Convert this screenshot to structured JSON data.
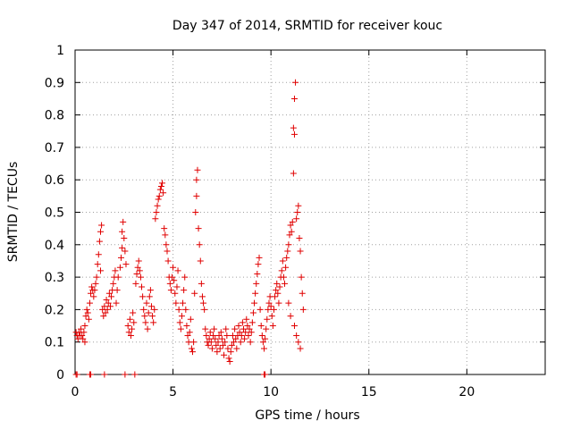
{
  "chart_data": {
    "type": "scatter",
    "title": "Day 347 of 2014, SRMTID for receiver kouc",
    "xlabel": "GPS time / hours",
    "ylabel": "SRMTID / TECUs",
    "xlim": [
      0,
      24
    ],
    "ylim": [
      0,
      1
    ],
    "xticks": [
      "0",
      "5",
      "10",
      "15",
      "20"
    ],
    "xtick_values": [
      0,
      5,
      10,
      15,
      20
    ],
    "yticks": [
      "0",
      "0.1",
      "0.2",
      "0.3",
      "0.4",
      "0.5",
      "0.6",
      "0.7",
      "0.8",
      "0.9",
      "1"
    ],
    "ytick_values": [
      0,
      0.1,
      0.2,
      0.3,
      0.4,
      0.5,
      0.6,
      0.7,
      0.8,
      0.9,
      1
    ],
    "grid": true,
    "marker": "+",
    "color": "#e00000",
    "series": [
      {
        "name": "SRMTID",
        "points": [
          [
            0.05,
            0.13
          ],
          [
            0.1,
            0.12
          ],
          [
            0.15,
            0.11
          ],
          [
            0.2,
            0.13
          ],
          [
            0.25,
            0.12
          ],
          [
            0.3,
            0.14
          ],
          [
            0.35,
            0.12
          ],
          [
            0.4,
            0.11
          ],
          [
            0.45,
            0.13
          ],
          [
            0.5,
            0.1
          ],
          [
            0.5,
            0.15
          ],
          [
            0.55,
            0.18
          ],
          [
            0.6,
            0.2
          ],
          [
            0.65,
            0.19
          ],
          [
            0.7,
            0.17
          ],
          [
            0.75,
            0.22
          ],
          [
            0.8,
            0.25
          ],
          [
            0.85,
            0.27
          ],
          [
            0.9,
            0.26
          ],
          [
            0.95,
            0.24
          ],
          [
            1.0,
            0.26
          ],
          [
            1.05,
            0.28
          ],
          [
            1.1,
            0.3
          ],
          [
            1.15,
            0.34
          ],
          [
            1.2,
            0.37
          ],
          [
            1.25,
            0.41
          ],
          [
            1.3,
            0.44
          ],
          [
            1.35,
            0.46
          ],
          [
            1.3,
            0.32
          ],
          [
            1.4,
            0.2
          ],
          [
            1.45,
            0.18
          ],
          [
            1.5,
            0.21
          ],
          [
            1.55,
            0.19
          ],
          [
            1.6,
            0.23
          ],
          [
            1.65,
            0.2
          ],
          [
            1.7,
            0.22
          ],
          [
            1.75,
            0.25
          ],
          [
            1.8,
            0.21
          ],
          [
            1.85,
            0.24
          ],
          [
            1.9,
            0.26
          ],
          [
            1.95,
            0.28
          ],
          [
            2.0,
            0.3
          ],
          [
            2.05,
            0.32
          ],
          [
            2.1,
            0.22
          ],
          [
            2.15,
            0.26
          ],
          [
            2.2,
            0.3
          ],
          [
            2.3,
            0.33
          ],
          [
            2.35,
            0.36
          ],
          [
            2.4,
            0.39
          ],
          [
            2.4,
            0.44
          ],
          [
            2.45,
            0.47
          ],
          [
            2.5,
            0.42
          ],
          [
            2.55,
            0.38
          ],
          [
            2.6,
            0.34
          ],
          [
            2.7,
            0.15
          ],
          [
            2.75,
            0.13
          ],
          [
            2.8,
            0.17
          ],
          [
            2.85,
            0.12
          ],
          [
            2.9,
            0.14
          ],
          [
            2.95,
            0.19
          ],
          [
            3.0,
            0.16
          ],
          [
            3.1,
            0.28
          ],
          [
            3.15,
            0.31
          ],
          [
            3.2,
            0.33
          ],
          [
            3.25,
            0.35
          ],
          [
            3.3,
            0.32
          ],
          [
            3.35,
            0.3
          ],
          [
            3.4,
            0.27
          ],
          [
            3.45,
            0.24
          ],
          [
            3.5,
            0.2
          ],
          [
            3.55,
            0.18
          ],
          [
            3.6,
            0.16
          ],
          [
            3.65,
            0.22
          ],
          [
            3.7,
            0.14
          ],
          [
            3.75,
            0.19
          ],
          [
            3.8,
            0.24
          ],
          [
            3.85,
            0.26
          ],
          [
            3.9,
            0.21
          ],
          [
            3.95,
            0.18
          ],
          [
            4.0,
            0.16
          ],
          [
            4.05,
            0.2
          ],
          [
            4.1,
            0.48
          ],
          [
            4.15,
            0.5
          ],
          [
            4.2,
            0.52
          ],
          [
            4.25,
            0.54
          ],
          [
            4.3,
            0.55
          ],
          [
            4.35,
            0.57
          ],
          [
            4.4,
            0.58
          ],
          [
            4.45,
            0.59
          ],
          [
            4.5,
            0.56
          ],
          [
            4.55,
            0.45
          ],
          [
            4.6,
            0.43
          ],
          [
            4.65,
            0.4
          ],
          [
            4.7,
            0.38
          ],
          [
            4.75,
            0.35
          ],
          [
            4.8,
            0.3
          ],
          [
            4.85,
            0.28
          ],
          [
            4.9,
            0.26
          ],
          [
            4.95,
            0.3
          ],
          [
            5.0,
            0.33
          ],
          [
            5.05,
            0.29
          ],
          [
            5.1,
            0.25
          ],
          [
            5.15,
            0.22
          ],
          [
            5.2,
            0.27
          ],
          [
            5.25,
            0.32
          ],
          [
            5.3,
            0.2
          ],
          [
            5.35,
            0.16
          ],
          [
            5.4,
            0.14
          ],
          [
            5.45,
            0.18
          ],
          [
            5.5,
            0.22
          ],
          [
            5.55,
            0.26
          ],
          [
            5.6,
            0.3
          ],
          [
            5.65,
            0.2
          ],
          [
            5.7,
            0.15
          ],
          [
            5.75,
            0.12
          ],
          [
            5.8,
            0.1
          ],
          [
            5.85,
            0.13
          ],
          [
            5.9,
            0.17
          ],
          [
            5.95,
            0.08
          ],
          [
            6.0,
            0.07
          ],
          [
            6.05,
            0.1
          ],
          [
            6.1,
            0.25
          ],
          [
            6.15,
            0.5
          ],
          [
            6.2,
            0.55
          ],
          [
            6.2,
            0.6
          ],
          [
            6.25,
            0.63
          ],
          [
            6.3,
            0.45
          ],
          [
            6.35,
            0.4
          ],
          [
            6.4,
            0.35
          ],
          [
            6.45,
            0.28
          ],
          [
            6.5,
            0.24
          ],
          [
            6.55,
            0.22
          ],
          [
            6.6,
            0.2
          ],
          [
            6.65,
            0.14
          ],
          [
            6.7,
            0.12
          ],
          [
            6.75,
            0.1
          ],
          [
            6.8,
            0.09
          ],
          [
            6.85,
            0.11
          ],
          [
            6.9,
            0.13
          ],
          [
            6.95,
            0.1
          ],
          [
            7.0,
            0.08
          ],
          [
            7.05,
            0.12
          ],
          [
            7.1,
            0.14
          ],
          [
            7.15,
            0.11
          ],
          [
            7.2,
            0.09
          ],
          [
            7.25,
            0.07
          ],
          [
            7.3,
            0.1
          ],
          [
            7.35,
            0.12
          ],
          [
            7.4,
            0.08
          ],
          [
            7.45,
            0.13
          ],
          [
            7.5,
            0.11
          ],
          [
            7.55,
            0.09
          ],
          [
            7.6,
            0.06
          ],
          [
            7.65,
            0.1
          ],
          [
            7.7,
            0.14
          ],
          [
            7.75,
            0.12
          ],
          [
            7.8,
            0.08
          ],
          [
            7.85,
            0.05
          ],
          [
            7.9,
            0.04
          ],
          [
            7.95,
            0.07
          ],
          [
            8.0,
            0.09
          ],
          [
            8.05,
            0.12
          ],
          [
            8.1,
            0.1
          ],
          [
            8.15,
            0.14
          ],
          [
            8.2,
            0.11
          ],
          [
            8.25,
            0.08
          ],
          [
            8.3,
            0.12
          ],
          [
            8.35,
            0.15
          ],
          [
            8.4,
            0.13
          ],
          [
            8.45,
            0.1
          ],
          [
            8.5,
            0.12
          ],
          [
            8.55,
            0.16
          ],
          [
            8.6,
            0.14
          ],
          [
            8.65,
            0.11
          ],
          [
            8.7,
            0.13
          ],
          [
            8.75,
            0.17
          ],
          [
            8.8,
            0.15
          ],
          [
            8.85,
            0.12
          ],
          [
            8.9,
            0.14
          ],
          [
            8.95,
            0.1
          ],
          [
            9.0,
            0.13
          ],
          [
            9.05,
            0.16
          ],
          [
            9.1,
            0.19
          ],
          [
            9.15,
            0.22
          ],
          [
            9.2,
            0.25
          ],
          [
            9.25,
            0.28
          ],
          [
            9.3,
            0.31
          ],
          [
            9.35,
            0.34
          ],
          [
            9.4,
            0.36
          ],
          [
            9.45,
            0.2
          ],
          [
            9.5,
            0.15
          ],
          [
            9.55,
            0.12
          ],
          [
            9.6,
            0.1
          ],
          [
            9.65,
            0.08
          ],
          [
            9.7,
            0.11
          ],
          [
            9.75,
            0.14
          ],
          [
            9.8,
            0.17
          ],
          [
            9.85,
            0.2
          ],
          [
            9.9,
            0.22
          ],
          [
            9.95,
            0.24
          ],
          [
            10.0,
            0.21
          ],
          [
            10.05,
            0.18
          ],
          [
            10.1,
            0.15
          ],
          [
            10.15,
            0.2
          ],
          [
            10.2,
            0.24
          ],
          [
            10.25,
            0.26
          ],
          [
            10.3,
            0.28
          ],
          [
            10.35,
            0.25
          ],
          [
            10.4,
            0.22
          ],
          [
            10.45,
            0.27
          ],
          [
            10.5,
            0.3
          ],
          [
            10.55,
            0.32
          ],
          [
            10.6,
            0.35
          ],
          [
            10.65,
            0.3
          ],
          [
            10.7,
            0.28
          ],
          [
            10.75,
            0.33
          ],
          [
            10.8,
            0.36
          ],
          [
            10.85,
            0.38
          ],
          [
            10.9,
            0.4
          ],
          [
            10.95,
            0.43
          ],
          [
            11.0,
            0.46
          ],
          [
            11.05,
            0.44
          ],
          [
            11.1,
            0.47
          ],
          [
            11.15,
            0.62
          ],
          [
            11.2,
            0.74
          ],
          [
            11.15,
            0.76
          ],
          [
            11.2,
            0.85
          ],
          [
            11.25,
            0.9
          ],
          [
            11.3,
            0.48
          ],
          [
            11.35,
            0.5
          ],
          [
            11.4,
            0.52
          ],
          [
            11.45,
            0.42
          ],
          [
            11.5,
            0.38
          ],
          [
            11.55,
            0.3
          ],
          [
            11.6,
            0.25
          ],
          [
            11.65,
            0.2
          ],
          [
            11.2,
            0.15
          ],
          [
            11.3,
            0.12
          ],
          [
            11.4,
            0.1
          ],
          [
            11.5,
            0.08
          ],
          [
            11.0,
            0.18
          ],
          [
            10.9,
            0.22
          ]
        ],
        "zero_points": [
          0.05,
          0.1,
          0.75,
          0.8,
          1.5,
          2.55,
          3.05,
          9.65,
          9.7
        ]
      }
    ]
  }
}
